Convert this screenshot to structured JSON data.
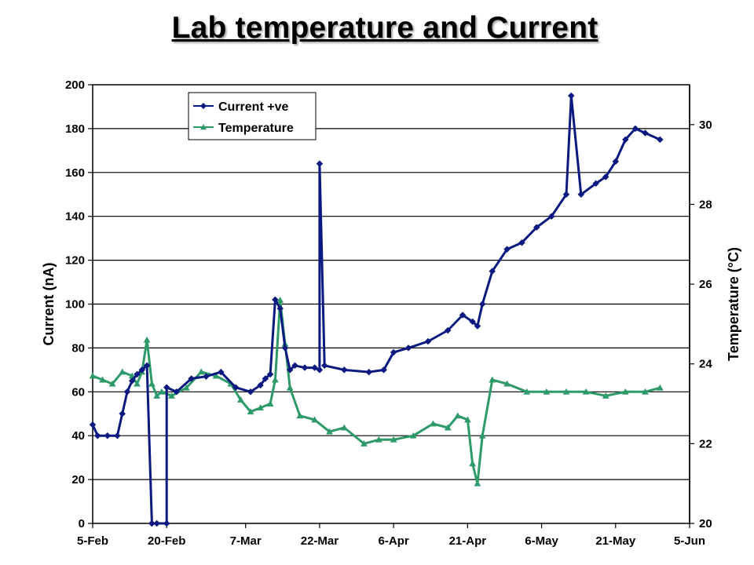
{
  "chart_data": {
    "type": "line",
    "title": "Lab temperature and Current",
    "xlabel": "",
    "ylabel": "Current (nA)",
    "y2label": "Temperature  (°C)",
    "x_ticks": [
      "5-Feb",
      "20-Feb",
      "7-Mar",
      "22-Mar",
      "6-Apr",
      "21-Apr",
      "6-May",
      "21-May",
      "5-Jun"
    ],
    "xlim": [
      "5-Feb",
      "5-Jun"
    ],
    "ylim": [
      0,
      200
    ],
    "y_ticks": [
      0,
      20,
      40,
      60,
      80,
      100,
      120,
      140,
      160,
      180,
      200
    ],
    "y2lim": [
      20,
      31
    ],
    "y2_ticks": [
      20,
      22,
      24,
      26,
      28,
      30
    ],
    "grid": true,
    "legend_position": "top-left",
    "series": [
      {
        "name": "Current +ve",
        "axis": "left",
        "color": "#0b1a80",
        "marker": "diamond",
        "x": [
          "5-Feb",
          "6-Feb",
          "8-Feb",
          "10-Feb",
          "11-Feb",
          "12-Feb",
          "13-Feb",
          "14-Feb",
          "15-Feb",
          "16-Feb",
          "17-Feb",
          "17-Feb",
          "18-Feb",
          "20-Feb",
          "20-Feb",
          "22-Feb",
          "25-Feb",
          "28-Feb",
          "2-Mar",
          "5-Mar",
          "8-Mar",
          "10-Mar",
          "11-Mar",
          "12-Mar",
          "13-Mar",
          "14-Mar",
          "15-Mar",
          "16-Mar",
          "17-Mar",
          "19-Mar",
          "21-Mar",
          "22-Mar",
          "22-Mar",
          "23-Mar",
          "27-Mar",
          "1-Apr",
          "4-Apr",
          "6-Apr",
          "9-Apr",
          "13-Apr",
          "17-Apr",
          "20-Apr",
          "22-Apr",
          "23-Apr",
          "24-Apr",
          "26-Apr",
          "29-Apr",
          "2-May",
          "5-May",
          "8-May",
          "11-May",
          "12-May",
          "14-May",
          "17-May",
          "19-May",
          "21-May",
          "23-May",
          "25-May",
          "27-May",
          "30-May"
        ],
        "values": [
          45,
          40,
          40,
          40,
          50,
          60,
          65,
          68,
          70,
          72,
          0,
          0,
          0,
          0,
          62,
          60,
          66,
          67,
          69,
          62,
          60,
          63,
          66,
          68,
          102,
          98,
          80,
          70,
          72,
          71,
          71,
          70,
          164,
          72,
          70,
          69,
          70,
          78,
          80,
          83,
          88,
          95,
          92,
          90,
          100,
          115,
          125,
          128,
          135,
          140,
          150,
          195,
          150,
          155,
          158,
          165,
          175,
          180,
          178,
          175
        ]
      },
      {
        "name": "Temperature",
        "axis": "right",
        "color": "#2e9a6a",
        "marker": "triangle",
        "x": [
          "5-Feb",
          "7-Feb",
          "9-Feb",
          "11-Feb",
          "13-Feb",
          "14-Feb",
          "15-Feb",
          "16-Feb",
          "17-Feb",
          "18-Feb",
          "19-Feb",
          "21-Feb",
          "24-Feb",
          "27-Feb",
          "1-Mar",
          "4-Mar",
          "6-Mar",
          "8-Mar",
          "10-Mar",
          "12-Mar",
          "13-Mar",
          "14-Mar",
          "15-Mar",
          "16-Mar",
          "18-Mar",
          "21-Mar",
          "24-Mar",
          "27-Mar",
          "31-Mar",
          "3-Apr",
          "6-Apr",
          "10-Apr",
          "14-Apr",
          "17-Apr",
          "19-Apr",
          "21-Apr",
          "22-Apr",
          "23-Apr",
          "24-Apr",
          "26-Apr",
          "29-Apr",
          "3-May",
          "7-May",
          "11-May",
          "15-May",
          "19-May",
          "23-May",
          "27-May",
          "30-May"
        ],
        "values": [
          23.7,
          23.6,
          23.5,
          23.8,
          23.7,
          23.5,
          23.8,
          24.6,
          23.5,
          23.2,
          23.3,
          23.2,
          23.4,
          23.8,
          23.7,
          23.5,
          23.1,
          22.8,
          22.9,
          23.0,
          23.6,
          25.6,
          24.5,
          23.4,
          22.7,
          22.6,
          22.3,
          22.4,
          22.0,
          22.1,
          22.1,
          22.2,
          22.5,
          22.4,
          22.7,
          22.6,
          21.5,
          21.0,
          22.2,
          23.6,
          23.5,
          23.3,
          23.3,
          23.3,
          23.3,
          23.2,
          23.3,
          23.3,
          23.4
        ]
      }
    ]
  }
}
